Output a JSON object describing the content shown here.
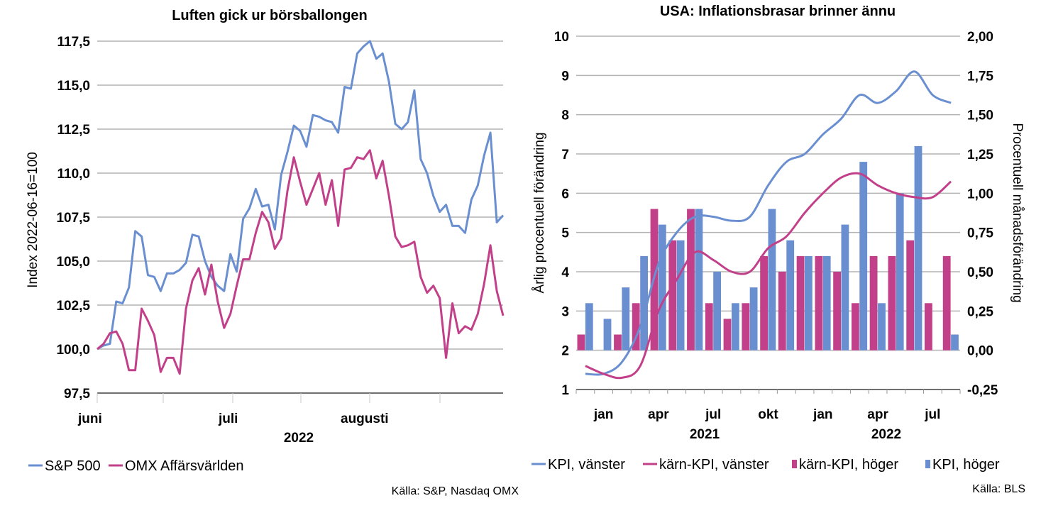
{
  "chart_data": [
    {
      "type": "line",
      "title": "Luften gick ur börsballongen",
      "ylabel": "Index 2022-06-16=100",
      "ylim": [
        97.5,
        117.5
      ],
      "yticks": [
        "117,5",
        "115,0",
        "112,5",
        "110,0",
        "107,5",
        "105,0",
        "102,5",
        "100,0",
        "97,5"
      ],
      "x_month_labels": [
        "juni",
        "juli",
        "augusti"
      ],
      "x_year_label": "2022",
      "source": "Källa: S&P, Nasdaq OMX",
      "series": [
        {
          "name": "S&P 500",
          "color": "#6a8fd0",
          "values": [
            100.0,
            100.2,
            100.3,
            102.7,
            102.6,
            103.5,
            106.7,
            106.4,
            104.2,
            104.1,
            103.3,
            104.3,
            104.3,
            104.5,
            104.9,
            106.5,
            106.4,
            105.0,
            104.1,
            103.6,
            103.3,
            105.4,
            104.4,
            107.4,
            108.0,
            109.1,
            108.1,
            108.2,
            106.8,
            109.9,
            111.2,
            112.7,
            112.4,
            111.5,
            113.3,
            113.2,
            113.0,
            112.9,
            112.3,
            114.9,
            114.8,
            116.8,
            117.2,
            117.5,
            116.5,
            116.8,
            115.2,
            112.8,
            112.5,
            112.9,
            114.7,
            110.8,
            110.0,
            108.7,
            107.8,
            108.2,
            107.0,
            107.0,
            106.6,
            108.5,
            109.3,
            111.0,
            112.3,
            107.2,
            107.6
          ]
        },
        {
          "name": "OMX Affärsvärlden",
          "color": "#c2408a",
          "values": [
            100.0,
            100.3,
            100.9,
            101.0,
            100.3,
            98.8,
            98.8,
            102.3,
            101.6,
            100.8,
            98.7,
            99.5,
            99.5,
            98.6,
            102.3,
            103.9,
            104.6,
            103.1,
            104.8,
            102.7,
            101.2,
            102.0,
            103.6,
            105.1,
            105.1,
            106.6,
            107.8,
            107.2,
            105.7,
            106.3,
            109.0,
            110.9,
            109.5,
            108.2,
            109.1,
            110.0,
            108.2,
            109.6,
            107.0,
            110.2,
            110.3,
            110.9,
            110.8,
            111.3,
            109.7,
            110.7,
            108.7,
            106.4,
            105.8,
            105.9,
            106.1,
            104.1,
            103.2,
            103.6,
            102.9,
            99.5,
            102.6,
            100.9,
            101.3,
            101.1,
            102.0,
            103.7,
            105.9,
            103.3,
            101.9
          ]
        }
      ]
    },
    {
      "type": "bar+line",
      "title": "USA: Inflationsbrasar brinner ännu",
      "ylabel_left": "Årlig procentuell förändring",
      "ylabel_right": "Procentuell månadsförändring",
      "ylim_left": [
        1,
        10
      ],
      "ylim_right": [
        -0.25,
        2.0
      ],
      "yticks_left": [
        "10",
        "9",
        "8",
        "7",
        "6",
        "5",
        "4",
        "3",
        "2",
        "1"
      ],
      "yticks_right": [
        "2,00",
        "1,75",
        "1,50",
        "1,25",
        "1,00",
        "0,75",
        "0,50",
        "0,25",
        "0,00",
        "-0,25"
      ],
      "x_month_labels": [
        "jan",
        "apr",
        "jul",
        "okt",
        "jan",
        "apr",
        "jul"
      ],
      "x_year_labels": [
        "2021",
        "2022"
      ],
      "months": [
        "2020-12",
        "2021-01",
        "2021-02",
        "2021-03",
        "2021-04",
        "2021-05",
        "2021-06",
        "2021-07",
        "2021-08",
        "2021-09",
        "2021-10",
        "2021-11",
        "2021-12",
        "2022-01",
        "2022-02",
        "2022-03",
        "2022-04",
        "2022-05",
        "2022-06",
        "2022-07",
        "2022-08"
      ],
      "source": "Källa: BLS",
      "series": [
        {
          "name": "KPI, vänster",
          "axis": "left",
          "kind": "line",
          "color": "#6a8fd0",
          "values": [
            1.4,
            1.4,
            1.7,
            2.6,
            4.2,
            5.0,
            5.4,
            5.4,
            5.3,
            5.4,
            6.2,
            6.8,
            7.0,
            7.5,
            7.9,
            8.5,
            8.3,
            8.6,
            9.1,
            8.5,
            8.3
          ]
        },
        {
          "name": "kärn-KPI, vänster",
          "axis": "left",
          "kind": "line",
          "color": "#c2408a",
          "values": [
            1.6,
            1.4,
            1.3,
            1.6,
            3.0,
            3.8,
            4.5,
            4.3,
            4.0,
            4.0,
            4.6,
            4.9,
            5.5,
            6.0,
            6.4,
            6.5,
            6.2,
            6.0,
            5.9,
            5.9,
            6.3
          ]
        },
        {
          "name": "kärn-KPI, höger",
          "axis": "right",
          "kind": "bar",
          "color": "#c2408a",
          "values": [
            0.1,
            0.0,
            0.1,
            0.3,
            0.9,
            0.7,
            0.9,
            0.3,
            0.2,
            0.3,
            0.6,
            0.5,
            0.6,
            0.6,
            0.5,
            0.3,
            0.6,
            0.6,
            0.7,
            0.3,
            0.6
          ]
        },
        {
          "name": "KPI, höger",
          "axis": "right",
          "kind": "bar",
          "color": "#6a8fd0",
          "values": [
            0.3,
            0.2,
            0.4,
            0.6,
            0.8,
            0.7,
            0.9,
            0.5,
            0.3,
            0.4,
            0.9,
            0.7,
            0.6,
            0.6,
            0.8,
            1.2,
            0.3,
            1.0,
            1.3,
            0.0,
            0.1
          ]
        }
      ]
    }
  ]
}
